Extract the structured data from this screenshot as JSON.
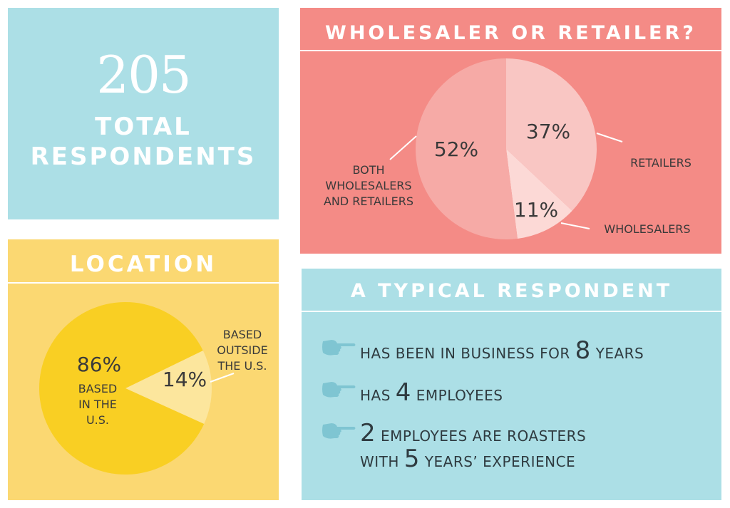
{
  "total": {
    "number": "205",
    "label_line1": "TOTAL",
    "label_line2": "RESPONDENTS"
  },
  "wholesaler": {
    "title": "WHOLESALER OR RETAILER?",
    "label_both": [
      "BOTH",
      "WHOLESALERS",
      "AND RETAILERS"
    ],
    "label_retailers": "RETAILERS",
    "label_wholesalers": "WHOLESALERS"
  },
  "location": {
    "title": "LOCATION",
    "label_outside": [
      "BASED",
      "OUTSIDE",
      "THE U.S."
    ],
    "label_inside": [
      "BASED",
      "IN THE",
      "U.S."
    ]
  },
  "typical": {
    "title": "A TYPICAL RESPONDENT",
    "fact1_pre": "HAS BEEN IN BUSINESS FOR",
    "fact1_num": "8",
    "fact1_post": "YEARS",
    "fact2_pre": "HAS",
    "fact2_num": "4",
    "fact2_post": "EMPLOYEES",
    "fact3_num": "2",
    "fact3_post": "EMPLOYEES ARE ROASTERS",
    "fact3b_pre": "WITH",
    "fact3b_num": "5",
    "fact3b_post": "YEARS’ EXPERIENCE"
  },
  "colors": {
    "blue_panel": "#acdfe6",
    "coral_panel": "#f48b86",
    "yellow_panel": "#fbd872",
    "pie_both": "#f6aaa6",
    "pie_retailers": "#f9c6c3",
    "pie_wholesalers": "#fcd9d6",
    "pie_us": "#f9cf23",
    "pie_outside": "#fce69d",
    "hand_icon": "#7fc5d2",
    "text_dark": "#3a3a3a"
  },
  "chart_data": [
    {
      "type": "pie",
      "categories": [
        "BOTH WHOLESALERS AND RETAILERS",
        "RETAILERS",
        "WHOLESALERS"
      ],
      "values": [
        52,
        37,
        11
      ],
      "value_labels": [
        "52%",
        "37%",
        "11%"
      ]
    },
    {
      "type": "pie",
      "categories": [
        "BASED IN THE U.S.",
        "BASED OUTSIDE THE U.S."
      ],
      "values": [
        86,
        14
      ],
      "value_labels": [
        "86%",
        "14%"
      ]
    }
  ]
}
